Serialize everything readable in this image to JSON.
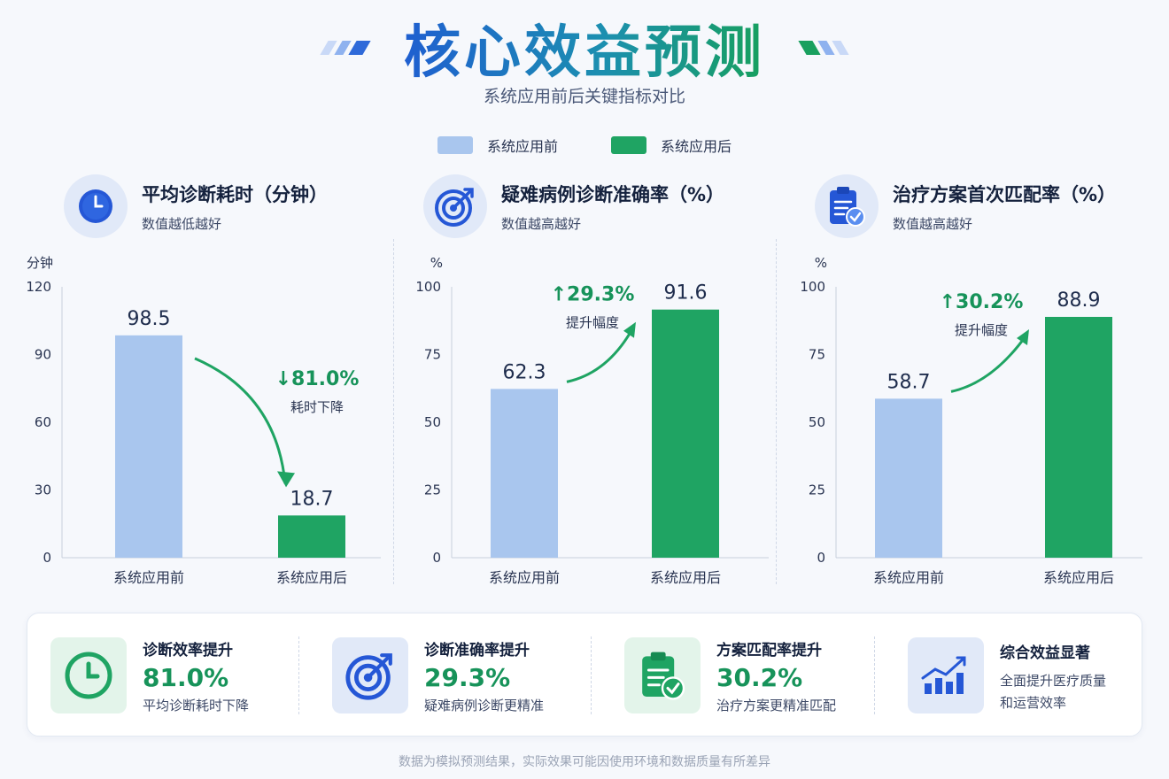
{
  "header": {
    "title": "核心效益预测",
    "subtitle": "系统应用前后关键指标对比"
  },
  "legend": [
    {
      "label": "系统应用前",
      "color": "#a9c6ee"
    },
    {
      "label": "系统应用后",
      "color": "#1fa463"
    }
  ],
  "colors": {
    "before": "#a9c6ee",
    "after": "#1fa463",
    "accent_green": "#17935a",
    "accent_blue": "#2557d6"
  },
  "chart_data": [
    {
      "type": "bar",
      "title": "平均诊断耗时（分钟）",
      "subtitle": "数值越低越好",
      "icon": "clock-icon",
      "unit_label": "分钟",
      "categories": [
        "系统应用前",
        "系统应用后"
      ],
      "values": [
        98.5,
        18.7
      ],
      "value_labels": [
        "98.5",
        "18.7"
      ],
      "ylim": [
        0,
        120
      ],
      "yticks": [
        0,
        30,
        60,
        90,
        120
      ],
      "ytick_labels": [
        "0",
        "30",
        "60",
        "90",
        "120"
      ],
      "change": {
        "text": "↓81.0%",
        "label": "耗时下降",
        "direction": "down"
      }
    },
    {
      "type": "bar",
      "title": "疑难病例诊断准确率（%）",
      "subtitle": "数值越高越好",
      "icon": "target-icon",
      "unit_label": "%",
      "categories": [
        "系统应用前",
        "系统应用后"
      ],
      "values": [
        62.3,
        91.6
      ],
      "value_labels": [
        "62.3",
        "91.6"
      ],
      "ylim": [
        0,
        100
      ],
      "yticks": [
        0,
        25,
        50,
        75,
        100
      ],
      "ytick_labels": [
        "0",
        "25",
        "50",
        "75",
        "100"
      ],
      "change": {
        "text": "↑29.3%",
        "label": "提升幅度",
        "direction": "up"
      }
    },
    {
      "type": "bar",
      "title": "治疗方案首次匹配率（%）",
      "subtitle": "数值越高越好",
      "icon": "clipboard-check-icon",
      "unit_label": "%",
      "categories": [
        "系统应用前",
        "系统应用后"
      ],
      "values": [
        58.7,
        88.9
      ],
      "value_labels": [
        "58.7",
        "88.9"
      ],
      "ylim": [
        0,
        100
      ],
      "yticks": [
        0,
        25,
        50,
        75,
        100
      ],
      "ytick_labels": [
        "0",
        "25",
        "50",
        "75",
        "100"
      ],
      "change": {
        "text": "↑30.2%",
        "label": "提升幅度",
        "direction": "up"
      }
    }
  ],
  "stats": [
    {
      "label": "诊断效率提升",
      "value": "81.0%",
      "desc": "平均诊断耗时下降",
      "icon": "clock-icon"
    },
    {
      "label": "诊断准确率提升",
      "value": "29.3%",
      "desc": "疑难病例诊断更精准",
      "icon": "target-icon"
    },
    {
      "label": "方案匹配率提升",
      "value": "30.2%",
      "desc": "治疗方案更精准匹配",
      "icon": "clipboard-check-icon"
    },
    {
      "label": "综合效益显著",
      "desc_line1": "全面提升医疗质量",
      "desc_line2": "和运营效率",
      "icon": "growth-chart-icon"
    }
  ],
  "footnote": "数据为模拟预测结果，实际效果可能因使用环境和数据质量有所差异"
}
